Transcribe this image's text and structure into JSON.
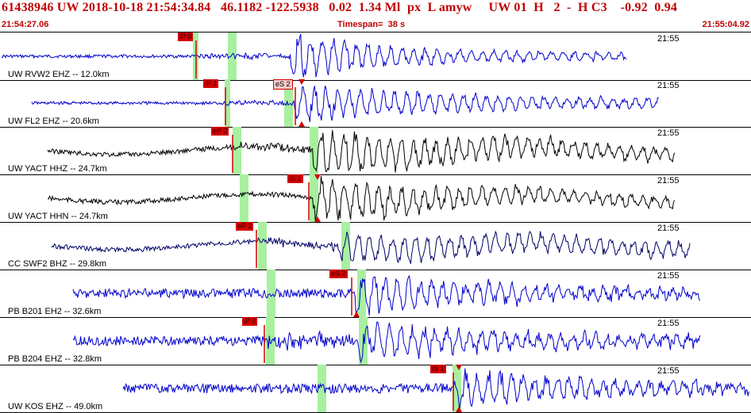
{
  "header": {
    "title": "61438946 UW 2018-10-18 21:54:34.84   46.1182 -122.5938   0.02  1.34 Ml  px  L amyw     UW 01  H   2  -  H C3    -0.92  0.94",
    "start_time": "21:54:27.06",
    "timespan": "Timespan=  38 s",
    "end_time": "21:55:04.92"
  },
  "colors": {
    "header_text": "#c00000",
    "trace_blue": "#0000cc",
    "trace_black": "#000000",
    "trace_navy": "#000066",
    "pick_red": "#d40000",
    "window_green": "#a8f0a0"
  },
  "traces": [
    {
      "channel": "UW RVW2 EHZ -- 12.0km",
      "time": "21:55",
      "color": "blue",
      "picks": [
        {
          "label": "iP 0",
          "style": "red"
        }
      ]
    },
    {
      "channel": "UW FL2 EHZ -- 20.6km",
      "time": "21:55",
      "color": "blue",
      "picks": [
        {
          "label": "iP 1",
          "style": "red"
        },
        {
          "label": "eS 2",
          "style": "pink"
        }
      ]
    },
    {
      "channel": "UW YACT HHZ -- 24.7km",
      "time": "21:55",
      "color": "black",
      "picks": [
        {
          "label": "eP 2",
          "style": "red"
        }
      ]
    },
    {
      "channel": "UW YACT HHN -- 24.7km",
      "time": "21:55",
      "color": "black",
      "picks": [
        {
          "label": "iS 1",
          "style": "red"
        }
      ]
    },
    {
      "channel": "CC SWF2 BHZ -- 29.8km",
      "time": "21:55",
      "color": "navy",
      "picks": [
        {
          "label": "eP 2",
          "style": "red"
        }
      ]
    },
    {
      "channel": "PB B201 EH2 -- 32.6km",
      "time": "21:55",
      "color": "blue",
      "picks": [
        {
          "label": "eS 2",
          "style": "red"
        }
      ]
    },
    {
      "channel": "PB B204 EHZ -- 32.8km",
      "time": "21:55",
      "color": "blue",
      "picks": [
        {
          "label": "iP 0",
          "style": "red"
        }
      ]
    },
    {
      "channel": "UW KOS EHZ -- 49.0km",
      "time": "21:55",
      "color": "blue",
      "picks": [
        {
          "label": "iS 1",
          "style": "red"
        }
      ]
    }
  ]
}
